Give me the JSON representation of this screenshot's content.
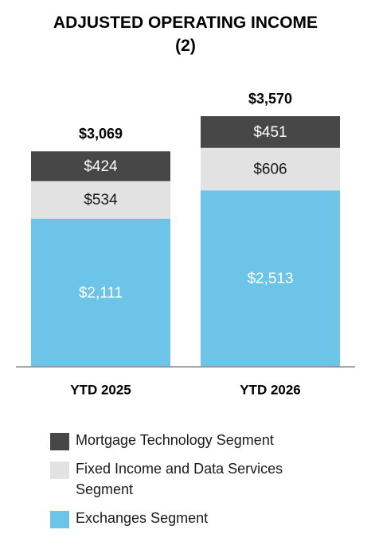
{
  "chart_data": {
    "type": "stacked_bar",
    "title": "ADJUSTED OPERATING INCOME (2)",
    "categories": [
      "YTD 2025",
      "YTD 2026"
    ],
    "series": [
      {
        "name": "Exchanges Segment",
        "color": "#6cc4e8",
        "label_color": "#ffffff",
        "values": [
          2111,
          2513
        ],
        "value_labels": [
          "$2,111",
          "$2,513"
        ]
      },
      {
        "name": "Fixed Income and Data Services Segment",
        "color": "#e2e2e2",
        "label_color": "#1a1a1a",
        "values": [
          534,
          606
        ],
        "value_labels": [
          "$534",
          "$606"
        ]
      },
      {
        "name": "Mortgage Technology Segment",
        "color": "#474747",
        "label_color": "#ffffff",
        "values": [
          424,
          451
        ],
        "value_labels": [
          "$424",
          "$451"
        ]
      }
    ],
    "totals": [
      3069,
      3570
    ],
    "total_labels": [
      "$3,069",
      "$3,570"
    ],
    "legend_order": [
      2,
      1,
      0
    ]
  }
}
